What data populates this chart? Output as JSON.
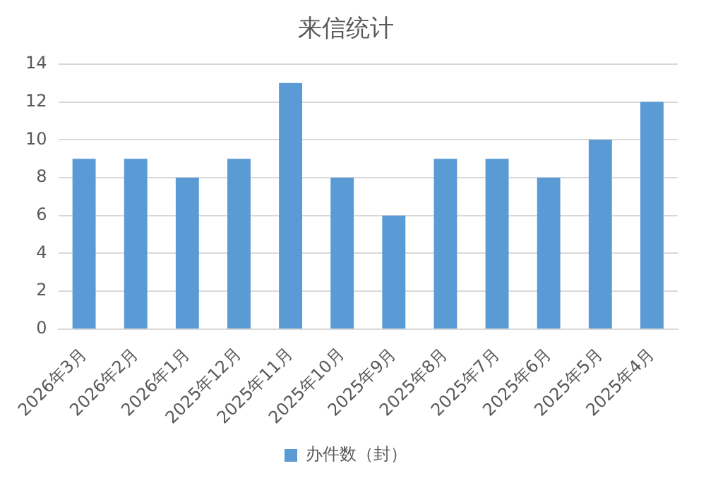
{
  "chart_data": {
    "type": "bar",
    "title": "来信统计",
    "categories": [
      "2026年3月",
      "2026年2月",
      "2026年1月",
      "2025年12月",
      "2025年11月",
      "2025年10月",
      "2025年9月",
      "2025年8月",
      "2025年7月",
      "2025年6月",
      "2025年5月",
      "2025年4月"
    ],
    "series": [
      {
        "name": "办件数（封）",
        "color": "#5b9bd5",
        "values": [
          9,
          9,
          8,
          9,
          13,
          8,
          6,
          9,
          9,
          8,
          10,
          12
        ]
      }
    ],
    "ylim": [
      0,
      14
    ],
    "yticks": [
      0,
      2,
      4,
      6,
      8,
      10,
      12,
      14
    ],
    "grid": "y",
    "legend": "bottom"
  }
}
